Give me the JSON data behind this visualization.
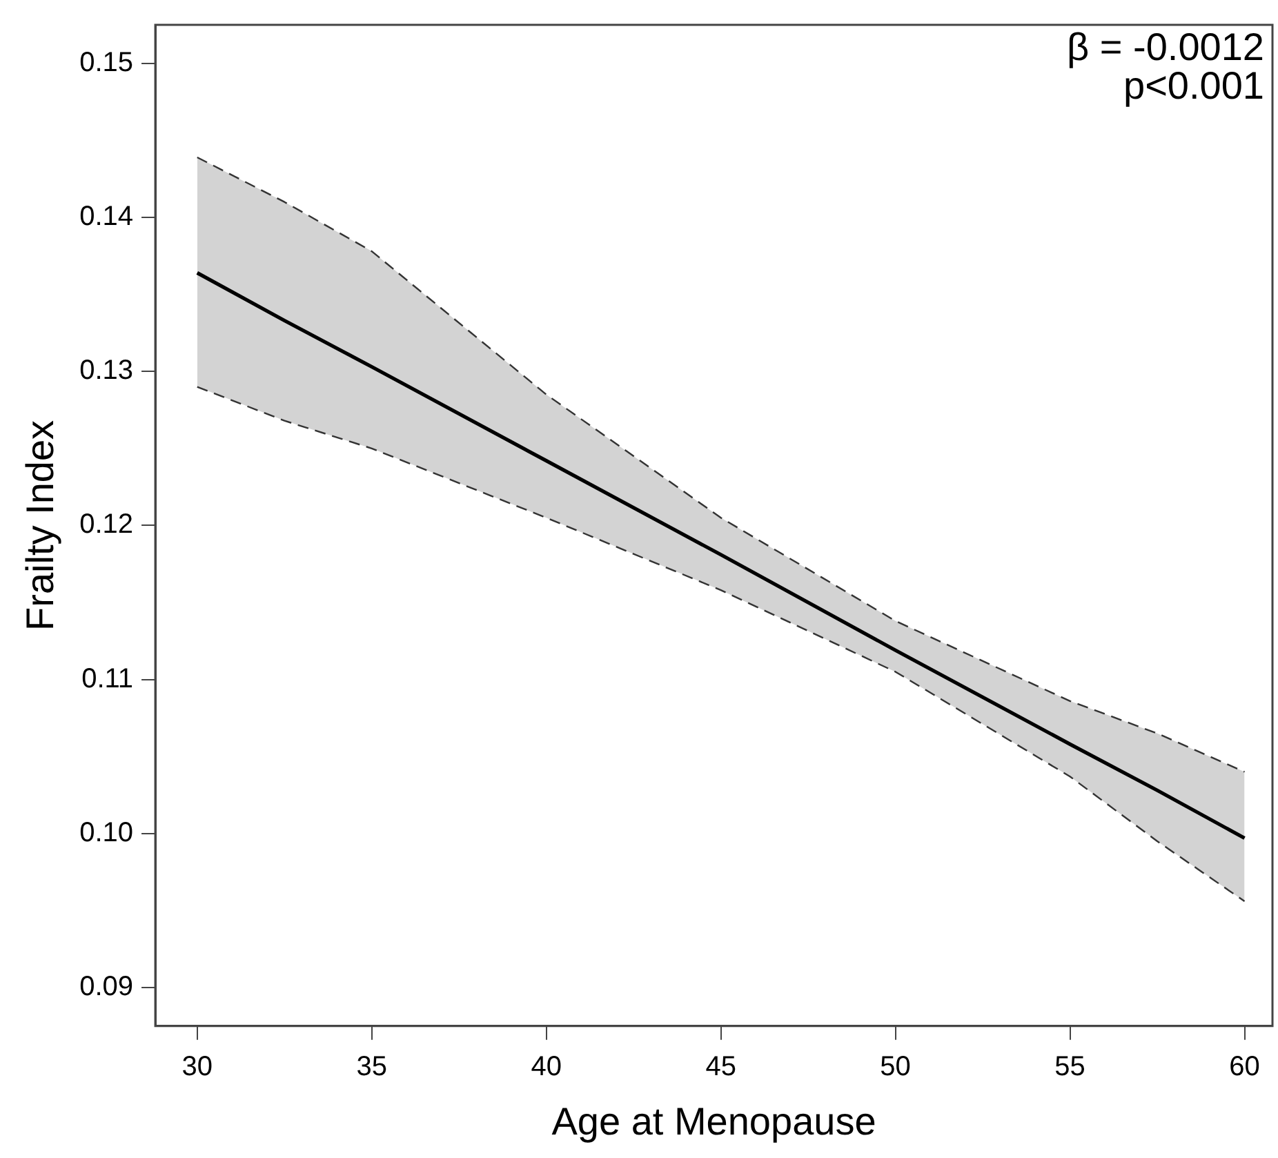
{
  "chart_data": {
    "type": "line",
    "xlabel": "Age at Menopause",
    "ylabel": "Frailty Index",
    "annotations": [
      "β = -0.0012",
      "p<0.001"
    ],
    "xlim": [
      28.8,
      60.8
    ],
    "xticks": [
      30,
      35,
      40,
      45,
      50,
      55,
      60
    ],
    "ylim": [
      0.0875,
      0.1525
    ],
    "yticks": [
      0.09,
      {
        "value": 0.1,
        "label": "0.10"
      },
      0.11,
      0.12,
      0.13,
      0.14,
      0.15
    ],
    "grid": false,
    "legend": false,
    "marker": "none",
    "line_style": "solid",
    "series": [
      {
        "color": "#000000",
        "x": [
          30,
          32.5,
          35,
          40,
          45,
          50,
          55,
          57.5,
          60
        ],
        "values": [
          0.1364,
          0.1333,
          0.1303,
          0.1242,
          0.1181,
          0.1119,
          0.1058,
          0.1028,
          0.0997
        ],
        "lower": [
          0.129,
          0.1268,
          0.125,
          0.1205,
          0.1158,
          0.1105,
          0.1037,
          0.0995,
          0.0956
        ],
        "upper": [
          0.1439,
          0.141,
          0.1378,
          0.1285,
          0.1205,
          0.1138,
          0.1086,
          0.1065,
          0.104
        ]
      },
      {
        "color": "#333333",
        "line_style": "dashed",
        "x": [
          30,
          32.5,
          35,
          40,
          45,
          50,
          55,
          57.5,
          60
        ],
        "values": [
          0.129,
          0.1268,
          0.125,
          0.1205,
          0.1158,
          0.1105,
          0.1037,
          0.0995,
          0.0956
        ]
      },
      {
        "color": "#333333",
        "line_style": "dashed",
        "x": [
          30,
          32.5,
          35,
          40,
          45,
          50,
          55,
          57.5,
          60
        ],
        "values": [
          0.1439,
          0.141,
          0.1378,
          0.1285,
          0.1205,
          0.1138,
          0.1086,
          0.1065,
          0.104
        ]
      }
    ]
  }
}
